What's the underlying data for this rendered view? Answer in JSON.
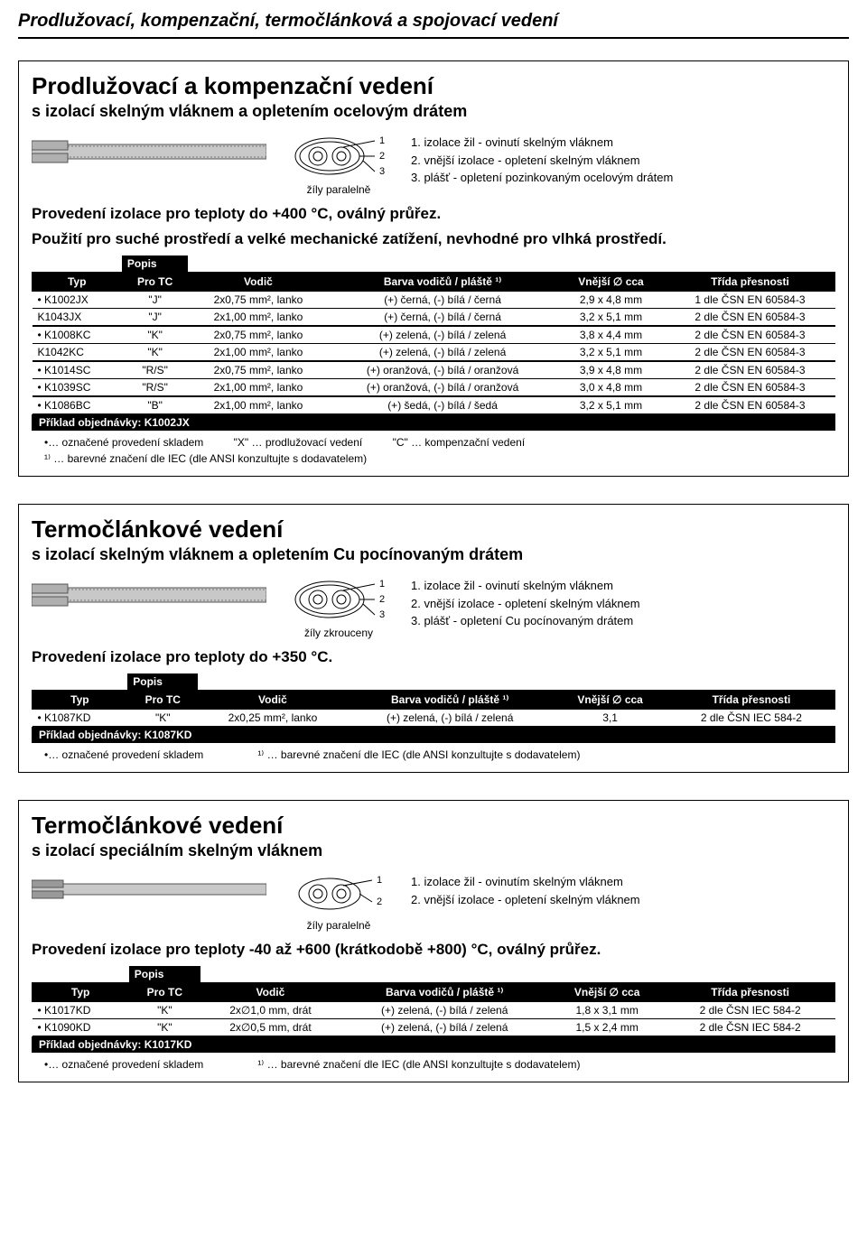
{
  "page_title": "Prodlužovací, kompenzační, termočlánková a spojovací vedení",
  "section1": {
    "title": "Prodlužovací a kompenzační vedení",
    "sub": "s izolací skelným vláknem a opletením ocelovým drátem",
    "cross_label": "žíly paralelně",
    "legend": [
      "1. izolace žil - ovinutí skelným vláknem",
      "2. vnější izolace - opletení skelným vláknem",
      "3. plášť - opletení pozinkovaným ocelovým drátem"
    ],
    "usage1": "Provedení izolace pro teploty do +400 °C, oválný průřez.",
    "usage2": "Použití pro suché prostředí a velké mechanické zatížení, nevhodné pro vlhká prostředí.",
    "popis": "Popis",
    "headers": [
      "Typ",
      "Pro TC",
      "Vodič",
      "Barva vodičů / pláště ¹⁾",
      "Vnější ∅ cca",
      "Třída přesnosti"
    ],
    "rows": [
      [
        "• K1002JX",
        "\"J\"",
        "2x0,75 mm², lanko",
        "(+) černá, (-) bílá / černá",
        "2,9 x 4,8 mm",
        "1 dle ČSN EN 60584-3"
      ],
      [
        "  K1043JX",
        "\"J\"",
        "2x1,00 mm², lanko",
        "(+) černá, (-) bílá / černá",
        "3,2 x 5,1 mm",
        "2 dle ČSN EN 60584-3"
      ],
      [
        "• K1008KC",
        "\"K\"",
        "2x0,75 mm², lanko",
        "(+) zelená, (-) bílá / zelená",
        "3,8 x 4,4 mm",
        "2 dle ČSN EN 60584-3"
      ],
      [
        "  K1042KC",
        "\"K\"",
        "2x1,00 mm², lanko",
        "(+) zelená, (-) bílá / zelená",
        "3,2 x 5,1 mm",
        "2 dle ČSN EN 60584-3"
      ],
      [
        "• K1014SC",
        "\"R/S\"",
        "2x0,75 mm², lanko",
        "(+) oranžová, (-) bílá / oranžová",
        "3,9 x 4,8 mm",
        "2 dle ČSN EN 60584-3"
      ],
      [
        "• K1039SC",
        "\"R/S\"",
        "2x1,00 mm², lanko",
        "(+) oranžová, (-) bílá / oranžová",
        "3,0 x 4,8 mm",
        "2 dle ČSN EN 60584-3"
      ],
      [
        "• K1086BC",
        "\"B\"",
        "2x1,00 mm², lanko",
        "(+) šedá, (-) bílá / šedá",
        "3,2 x 5,1 mm",
        "2 dle ČSN EN 60584-3"
      ]
    ],
    "priklad": "Příklad objednávky: K1002JX",
    "note1": "•… označené provedení skladem          \"X\" … prodlužovací vedení          \"C\" … kompenzační vedení",
    "note2": "¹⁾ … barevné značení dle IEC (dle ANSI konzultujte s dodavatelem)"
  },
  "section2": {
    "title": "Termočlánkové vedení",
    "sub": "s izolací skelným vláknem a opletením Cu pocínovaným drátem",
    "cross_label": "žíly zkrouceny",
    "legend": [
      "1. izolace žil - ovinutí skelným vláknem",
      "2. vnější izolace - opletení skelným vláknem",
      "3. plášť - opletení Cu pocínovaným drátem"
    ],
    "usage1": "Provedení izolace pro teploty do +350 °C.",
    "popis": "Popis",
    "headers": [
      "Typ",
      "Pro TC",
      "Vodič",
      "Barva vodičů / pláště ¹⁾",
      "Vnější ∅ cca",
      "Třída přesnosti"
    ],
    "rows": [
      [
        "• K1087KD",
        "\"K\"",
        "2x0,25 mm², lanko",
        "(+) zelená, (-) bílá / zelená",
        "3,1",
        "2 dle ČSN IEC 584-2"
      ]
    ],
    "priklad": "Příklad objednávky: K1087KD",
    "note1": "•… označené provedení skladem",
    "note2": "¹⁾ … barevné značení dle IEC (dle ANSI konzultujte s dodavatelem)"
  },
  "section3": {
    "title": "Termočlánkové vedení",
    "sub": "s izolací speciálním skelným vláknem",
    "cross_label": "žíly paralelně",
    "legend": [
      "1. izolace žil - ovinutím skelným vláknem",
      "2. vnější izolace - opletení skelným vláknem"
    ],
    "usage1": "Provedení izolace pro teploty -40 až +600 (krátkodobě +800) °C, oválný průřez.",
    "popis": "Popis",
    "headers": [
      "Typ",
      "Pro TC",
      "Vodič",
      "Barva vodičů / pláště ¹⁾",
      "Vnější ∅ cca",
      "Třída přesnosti"
    ],
    "rows": [
      [
        "• K1017KD",
        "\"K\"",
        "2x∅1,0 mm, drát",
        "(+) zelená, (-) bílá / zelená",
        "1,8 x 3,1 mm",
        "2 dle ČSN IEC 584-2"
      ],
      [
        "• K1090KD",
        "\"K\"",
        "2x∅0,5 mm, drát",
        "(+) zelená, (-) bílá / zelená",
        "1,5 x 2,4 mm",
        "2 dle ČSN IEC 584-2"
      ]
    ],
    "priklad": "Příklad objednávky: K1017KD",
    "note1": "•… označené provedení skladem",
    "note2": "¹⁾ … barevné značení dle IEC (dle ANSI konzultujte s dodavatelem)"
  },
  "svg": {
    "cable_fill": "#d0d0d0",
    "cable_stroke": "#555555",
    "cross_fill": "#ffffff",
    "cross_stroke": "#000000",
    "hatch_stroke": "#888888"
  }
}
